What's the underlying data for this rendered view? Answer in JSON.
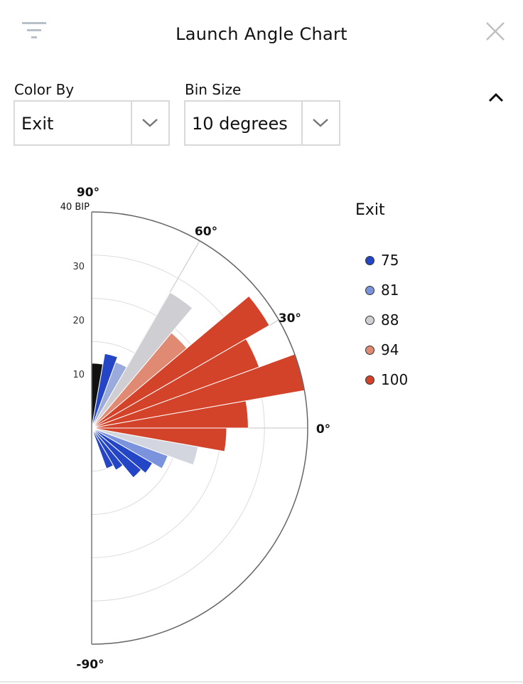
{
  "header": {
    "title": "Launch Angle Chart"
  },
  "controls": {
    "color_by": {
      "label": "Color By",
      "value": "Exit"
    },
    "bin_size": {
      "label": "Bin Size",
      "value": "10 degrees"
    }
  },
  "colors": {
    "75": "#2446c6",
    "81": "#7b93dc",
    "88": "#cfcfd3",
    "94": "#e08a74",
    "100": "#d2432a",
    "black": "#111111",
    "lightGrey": "#d3d6df",
    "lightBlue": "#9aaadd"
  },
  "chart_data": {
    "type": "polar-bar",
    "angle_labels": [
      {
        "angle": 90,
        "text": "90°"
      },
      {
        "angle": 60,
        "text": "60°"
      },
      {
        "angle": 30,
        "text": "30°"
      },
      {
        "angle": 0,
        "text": "0°"
      },
      {
        "angle": -90,
        "text": "-90°"
      }
    ],
    "radial_unit_label": "40 BIP",
    "radial_ticks": [
      10,
      20,
      30
    ],
    "rmax": 40,
    "bins": [
      {
        "start": 80,
        "end": 90,
        "value": 12,
        "color": "#111111"
      },
      {
        "start": 70,
        "end": 80,
        "value": 14,
        "color": "#2446c6"
      },
      {
        "start": 60,
        "end": 70,
        "value": 13,
        "color": "#9aaadd"
      },
      {
        "start": 50,
        "end": 60,
        "value": 29,
        "color": "#cfcfd3"
      },
      {
        "start": 40,
        "end": 50,
        "value": 23,
        "color": "#e08a74"
      },
      {
        "start": 30,
        "end": 40,
        "value": 38,
        "color": "#d2432a"
      },
      {
        "start": 20,
        "end": 30,
        "value": 33,
        "color": "#d2432a"
      },
      {
        "start": 10,
        "end": 20,
        "value": 40,
        "color": "#d2432a"
      },
      {
        "start": 0,
        "end": 10,
        "value": 29,
        "color": "#d2432a"
      },
      {
        "start": -10,
        "end": 0,
        "value": 25,
        "color": "#d2432a"
      },
      {
        "start": -20,
        "end": -10,
        "value": 20,
        "color": "#d3d6df"
      },
      {
        "start": -30,
        "end": -20,
        "value": 15,
        "color": "#7b93dc"
      },
      {
        "start": -40,
        "end": -30,
        "value": 13,
        "color": "#2446c6"
      },
      {
        "start": -50,
        "end": -40,
        "value": 12,
        "color": "#2446c6"
      },
      {
        "start": -60,
        "end": -50,
        "value": 9,
        "color": "#2446c6"
      },
      {
        "start": -70,
        "end": -60,
        "value": 8,
        "color": "#2446c6"
      }
    ]
  },
  "legend": {
    "title": "Exit",
    "items": [
      {
        "label": "75",
        "color": "#2446c6"
      },
      {
        "label": "81",
        "color": "#7b93dc"
      },
      {
        "label": "88",
        "color": "#cfcfd3"
      },
      {
        "label": "94",
        "color": "#e08a74"
      },
      {
        "label": "100",
        "color": "#d2432a"
      }
    ]
  }
}
